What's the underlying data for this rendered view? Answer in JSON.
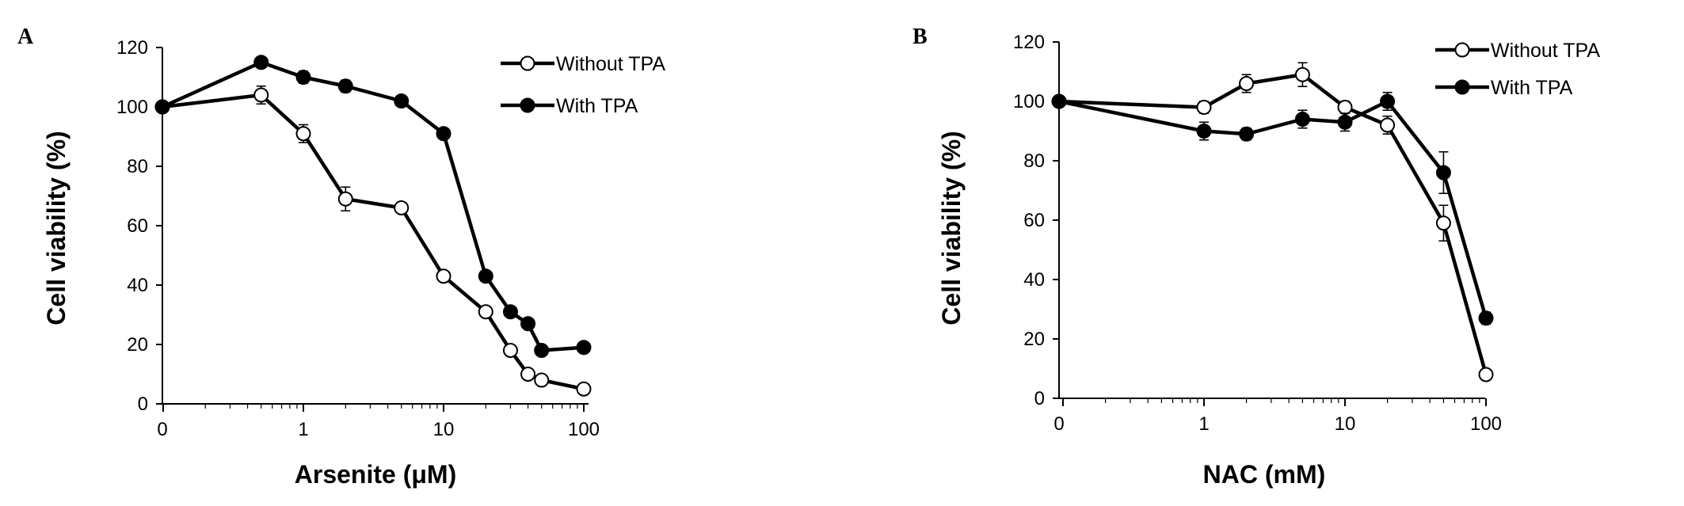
{
  "chart_data": [
    {
      "type": "line",
      "panel_label": "A",
      "xlabel": "Arsenite (μM)",
      "ylabel": "Cell viability (%)",
      "x_scale": "log with 0 at origin",
      "x_ticks": [
        "0",
        "1",
        "10",
        "100"
      ],
      "y_ticks": [
        "0",
        "20",
        "40",
        "60",
        "80",
        "100",
        "120"
      ],
      "ylim": [
        0,
        120
      ],
      "legend_position": "top-right",
      "series": [
        {
          "name": "Without TPA",
          "marker": "open-circle",
          "x": [
            0,
            0.5,
            1,
            2,
            5,
            10,
            20,
            30,
            40,
            50,
            100
          ],
          "y": [
            100,
            104,
            91,
            69,
            66,
            43,
            31,
            18,
            10,
            8,
            5
          ],
          "err": [
            0,
            3,
            3,
            4,
            1,
            1,
            1,
            1,
            1,
            1,
            1
          ]
        },
        {
          "name": "With TPA",
          "marker": "filled-circle",
          "x": [
            0,
            0.5,
            1,
            2,
            5,
            10,
            20,
            30,
            40,
            50,
            100
          ],
          "y": [
            100,
            115,
            110,
            107,
            102,
            91,
            43,
            31,
            27,
            18,
            19
          ],
          "err": [
            0,
            1,
            2,
            2,
            1,
            1,
            1,
            1,
            1,
            1,
            1
          ]
        }
      ]
    },
    {
      "type": "line",
      "panel_label": "B",
      "xlabel": "NAC (mM)",
      "ylabel": "Cell viability (%)",
      "x_scale": "log with 0 at origin",
      "x_ticks": [
        "0",
        "1",
        "10",
        "100"
      ],
      "y_ticks": [
        "0",
        "20",
        "40",
        "60",
        "80",
        "100",
        "120"
      ],
      "ylim": [
        0,
        120
      ],
      "legend_position": "top-right",
      "series": [
        {
          "name": "Without TPA",
          "marker": "open-circle",
          "x": [
            0,
            1,
            2,
            5,
            10,
            20,
            50,
            100
          ],
          "y": [
            100,
            98,
            106,
            109,
            98,
            92,
            59,
            8
          ],
          "err": [
            0,
            2,
            3,
            4,
            2,
            3,
            6,
            1
          ]
        },
        {
          "name": "With TPA",
          "marker": "filled-circle",
          "x": [
            0,
            1,
            2,
            5,
            10,
            20,
            50,
            100
          ],
          "y": [
            100,
            90,
            89,
            94,
            93,
            100,
            76,
            27
          ],
          "err": [
            0,
            3,
            2,
            3,
            3,
            3,
            7,
            2
          ]
        }
      ]
    }
  ]
}
